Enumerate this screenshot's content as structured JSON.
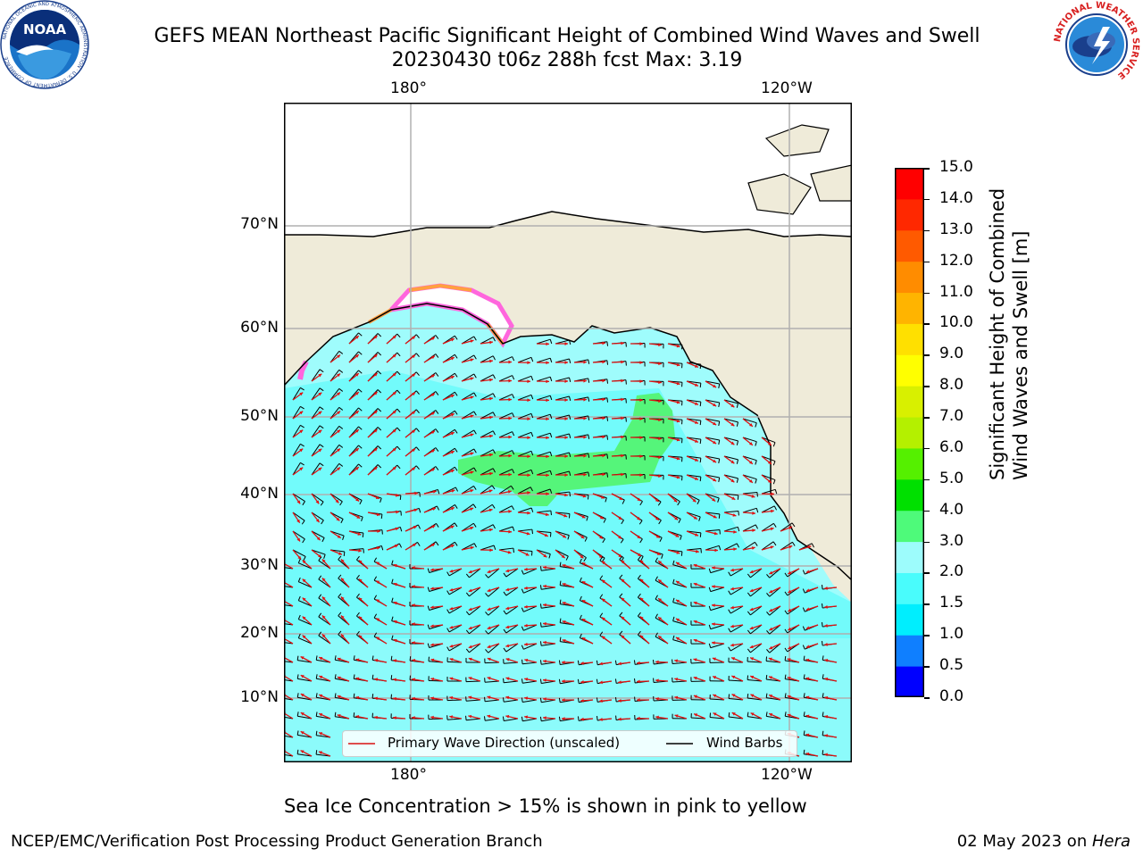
{
  "header": {
    "title_line1": "GEFS MEAN Northeast Pacific Significant Height of Combined Wind Waves and Swell",
    "title_line2": "20230430 t06z 288h fcst   Max: 3.19"
  },
  "logos": {
    "noaa_text": "NOAA",
    "noaa_ring_text": "NATIONAL OCEANIC AND ATMOSPHERIC ADMINISTRATION · U.S. DEPARTMENT OF COMMERCE",
    "nws_ring_text": "NATIONAL WEATHER SERVICE"
  },
  "map": {
    "lon_labels": [
      "180°",
      "120°W"
    ],
    "lat_labels": [
      "70°N",
      "60°N",
      "50°N",
      "40°N",
      "30°N",
      "20°N",
      "10°N"
    ],
    "colors": {
      "land": "#efebd9",
      "ocean_low": "#9ffcfc",
      "ocean_mid": "#4dfafa",
      "ocean_high": "#55f57a",
      "ice_pink": "#ff66dd",
      "ice_orange": "#ffa040",
      "wave_arrow": "#ff0000",
      "wind_barb": "#000000",
      "grid": "#b0b0b0"
    },
    "legend": {
      "wave_label": "Primary Wave Direction (unscaled)",
      "barb_label": "Wind Barbs"
    },
    "note": "Sea Ice Concentration > 15% is shown in pink to yellow"
  },
  "colorbar": {
    "title_line1": "Significant Height of Combined",
    "title_line2": "Wind Waves and Swell [m]",
    "ticks": [
      "0.0",
      "0.5",
      "1.0",
      "1.5",
      "2.0",
      "3.0",
      "4.0",
      "5.0",
      "6.0",
      "7.0",
      "8.0",
      "9.0",
      "10.0",
      "11.0",
      "12.0",
      "13.0",
      "14.0",
      "15.0"
    ],
    "colors": [
      "#0000ff",
      "#0f7fff",
      "#00eefe",
      "#49fcfc",
      "#9dfcfc",
      "#4efa7a",
      "#00e000",
      "#55f000",
      "#b4f000",
      "#d8f000",
      "#ffff00",
      "#ffe000",
      "#ffb400",
      "#ff8c00",
      "#ff5a00",
      "#ff2800",
      "#ff0000"
    ]
  },
  "footer": {
    "left": "NCEP/EMC/Verification Post Processing Product Generation Branch",
    "date": "02 May 2023 on ",
    "machine": "Hera"
  }
}
